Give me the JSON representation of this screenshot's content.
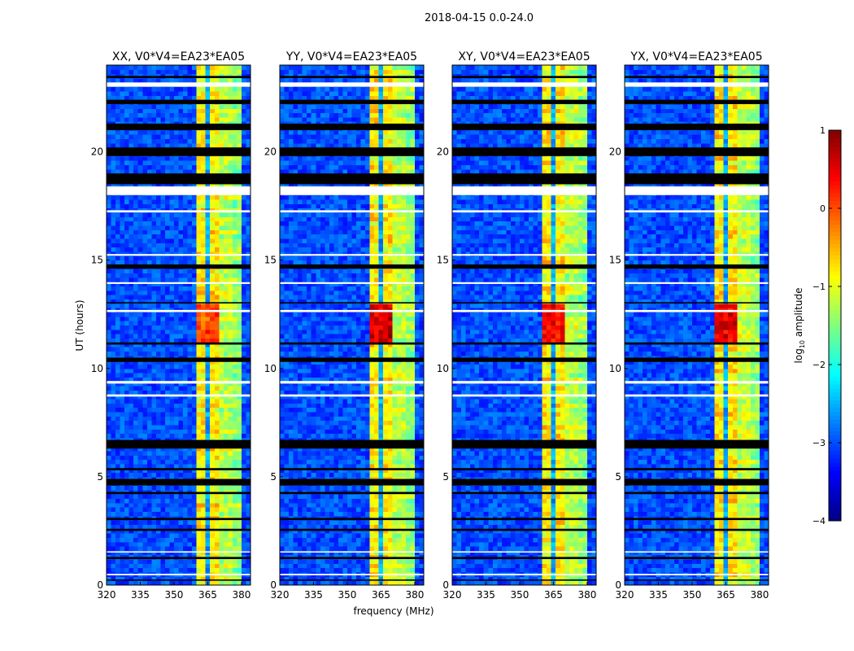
{
  "chart_data": {
    "type": "heatmap",
    "title": "2018-04-15 0.0-24.0",
    "xlabel": "frequency (MHz)",
    "ylabel": "UT (hours)",
    "xlim": [
      320,
      384
    ],
    "ylim": [
      0,
      24
    ],
    "xticks": [
      "320",
      "335",
      "350",
      "365",
      "380"
    ],
    "xtick_values": [
      320,
      335,
      350,
      365,
      380
    ],
    "yticks": [
      "0",
      "5",
      "10",
      "15",
      "20"
    ],
    "ytick_values": [
      0,
      5,
      10,
      15,
      20
    ],
    "panels": [
      {
        "title": "XX, V0*V4=EA23*EA05",
        "rfi_peak": 0.2
      },
      {
        "title": "YY, V0*V4=EA23*EA05",
        "rfi_peak": 0.7
      },
      {
        "title": "XY, V0*V4=EA23*EA05",
        "rfi_peak": 0.5
      },
      {
        "title": "YX, V0*V4=EA23*EA05",
        "rfi_peak": 0.6
      }
    ],
    "band_profile": [
      {
        "from": 320,
        "to": 360,
        "log_amp": -3.0
      },
      {
        "from": 360,
        "to": 365,
        "log_amp": -0.8
      },
      {
        "from": 365,
        "to": 366,
        "log_amp": -2.6
      },
      {
        "from": 366,
        "to": 370,
        "log_amp": -0.8
      },
      {
        "from": 370,
        "to": 371,
        "log_amp": -2.6
      },
      {
        "from": 371,
        "to": 376,
        "log_amp": -1.2
      },
      {
        "from": 376,
        "to": 377,
        "log_amp": -2.4
      },
      {
        "from": 377,
        "to": 380,
        "log_amp": -1.4
      },
      {
        "from": 380,
        "to": 384,
        "log_amp": -3.0
      }
    ],
    "strong_rfi_hours": [
      11.0,
      12.8
    ],
    "flagged_white_hours": [
      [
        0.45,
        0.52
      ],
      [
        1.5,
        1.56
      ],
      [
        8.7,
        8.8
      ],
      [
        9.3,
        9.42
      ],
      [
        12.6,
        12.7
      ],
      [
        13.9,
        13.98
      ],
      [
        15.2,
        15.28
      ],
      [
        17.2,
        17.3
      ],
      [
        18.0,
        18.4
      ],
      [
        23.0,
        23.2
      ]
    ],
    "flagged_black_hours": [
      [
        0.2,
        0.26
      ],
      [
        1.2,
        1.3
      ],
      [
        2.5,
        2.6
      ],
      [
        3.0,
        3.1
      ],
      [
        4.2,
        4.3
      ],
      [
        4.6,
        4.9
      ],
      [
        5.3,
        5.4
      ],
      [
        6.3,
        6.7
      ],
      [
        10.3,
        10.5
      ],
      [
        11.1,
        11.2
      ],
      [
        13.0,
        13.06
      ],
      [
        14.6,
        14.8
      ],
      [
        18.5,
        19.0
      ],
      [
        19.8,
        20.2
      ],
      [
        21.0,
        21.3
      ],
      [
        22.2,
        22.4
      ],
      [
        23.4,
        23.5
      ]
    ],
    "colorbar": {
      "label": "log10 amplitude",
      "label_main": "log",
      "label_sub": "10",
      "label_rest": " amplitude",
      "range": [
        -4,
        1
      ],
      "ticks": [
        "−4",
        "−3",
        "−2",
        "−1",
        "0",
        "1"
      ],
      "tick_values": [
        -4,
        -3,
        -2,
        -1,
        0,
        1
      ],
      "colormap": "jet"
    }
  }
}
